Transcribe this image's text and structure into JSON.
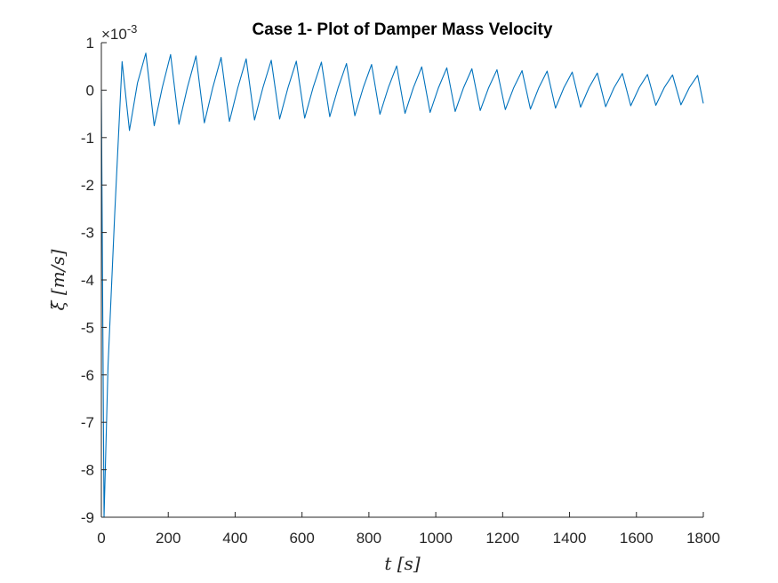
{
  "chart_data": {
    "type": "line",
    "title": "Case 1- Plot of Damper Mass Velocity",
    "xlabel": "t [s]",
    "ylabel": "ξ̇ [m/s]",
    "y_exponent_label": "×10",
    "y_exponent": "-3",
    "xlim": [
      0,
      1800
    ],
    "ylim": [
      -9,
      1
    ],
    "y_scale_factor": 0.001,
    "x_ticks": [
      0,
      200,
      400,
      600,
      800,
      1000,
      1200,
      1400,
      1600,
      1800
    ],
    "y_ticks": [
      1,
      0,
      -1,
      -2,
      -3,
      -4,
      -5,
      -6,
      -7,
      -8,
      -9
    ],
    "x_tick_labels": [
      "0",
      "200",
      "400",
      "600",
      "800",
      "1000",
      "1200",
      "1400",
      "1600",
      "1800"
    ],
    "y_tick_labels": [
      "1",
      "0",
      "-1",
      "-2",
      "-3",
      "-4",
      "-5",
      "-6",
      "-7",
      "-8",
      "-9"
    ],
    "series": [
      {
        "color": "#0072BD",
        "x": [
          0,
          8,
          20,
          40,
          62,
          84,
          108,
          133,
          158,
          182,
          207,
          232,
          257,
          283,
          308,
          333,
          358,
          383,
          408,
          433,
          458,
          483,
          508,
          533,
          558,
          583,
          608,
          633,
          658,
          683,
          708,
          733,
          758,
          783,
          808,
          833,
          858,
          883,
          908,
          933,
          958,
          983,
          1008,
          1033,
          1058,
          1083,
          1108,
          1133,
          1158,
          1183,
          1208,
          1233,
          1258,
          1283,
          1308,
          1333,
          1358,
          1383,
          1408,
          1433,
          1458,
          1483,
          1508,
          1533,
          1558,
          1583,
          1608,
          1633,
          1658,
          1683,
          1708,
          1733,
          1758,
          1783,
          1800
        ],
        "y": [
          0,
          -9.0,
          -5.8,
          -2.6,
          0.6,
          -0.85,
          0.15,
          0.78,
          -0.75,
          0.05,
          0.75,
          -0.72,
          0.05,
          0.72,
          -0.69,
          0.05,
          0.69,
          -0.66,
          0.05,
          0.66,
          -0.63,
          0.05,
          0.63,
          -0.61,
          0.05,
          0.61,
          -0.59,
          0.05,
          0.59,
          -0.56,
          0.05,
          0.56,
          -0.54,
          0.05,
          0.54,
          -0.51,
          0.05,
          0.51,
          -0.49,
          0.05,
          0.49,
          -0.47,
          0.05,
          0.47,
          -0.45,
          0.05,
          0.45,
          -0.43,
          0.05,
          0.43,
          -0.41,
          0.05,
          0.41,
          -0.4,
          0.05,
          0.4,
          -0.38,
          0.05,
          0.38,
          -0.36,
          0.05,
          0.36,
          -0.35,
          0.05,
          0.35,
          -0.33,
          0.05,
          0.33,
          -0.32,
          0.05,
          0.32,
          -0.31,
          0.05,
          0.31,
          -0.28
        ]
      }
    ]
  }
}
